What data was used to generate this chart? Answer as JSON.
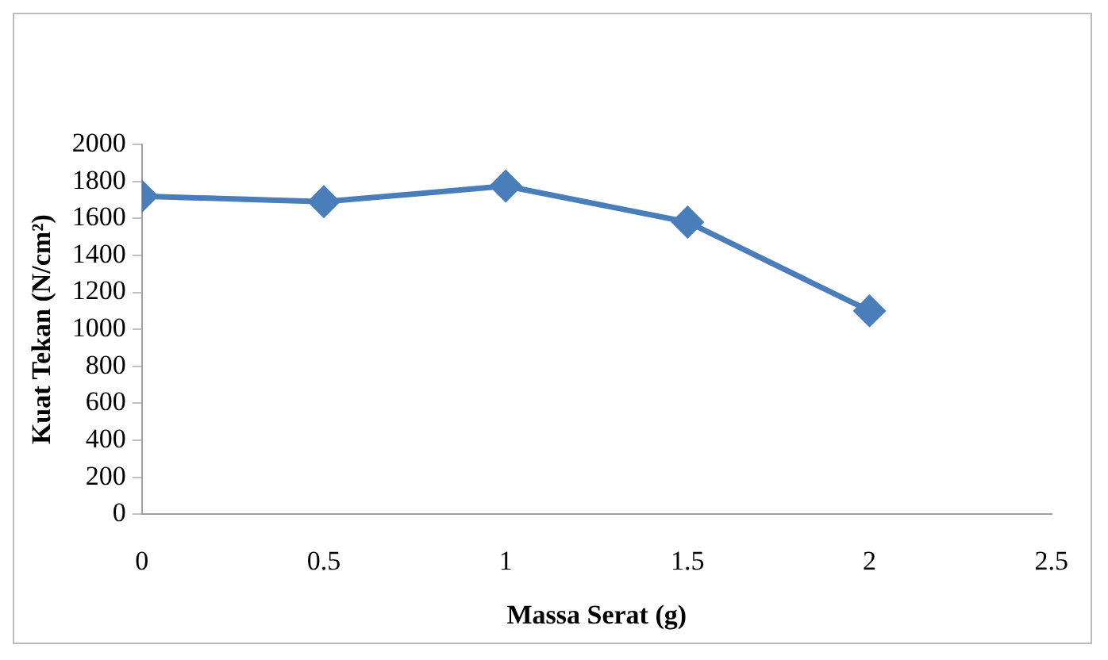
{
  "chart_data": {
    "type": "line",
    "xlabel": "Massa Serat (g)",
    "ylabel": "Kuat Tekan (N/cm²)",
    "x": [
      0,
      0.5,
      1,
      1.5,
      2
    ],
    "series": [
      {
        "color": "#4a7ebb",
        "values": [
          1720,
          1690,
          1775,
          1580,
          1100
        ]
      }
    ],
    "xlim": [
      0,
      2.5
    ],
    "xticks": [
      0,
      0.5,
      1,
      1.5,
      2,
      2.5
    ],
    "ylim": [
      0,
      2000
    ],
    "yticks": [
      0,
      200,
      400,
      600,
      800,
      1000,
      1200,
      1400,
      1600,
      1800,
      2000
    ],
    "grid": false,
    "legend": false,
    "marker": "diamond",
    "line_style": "solid"
  }
}
